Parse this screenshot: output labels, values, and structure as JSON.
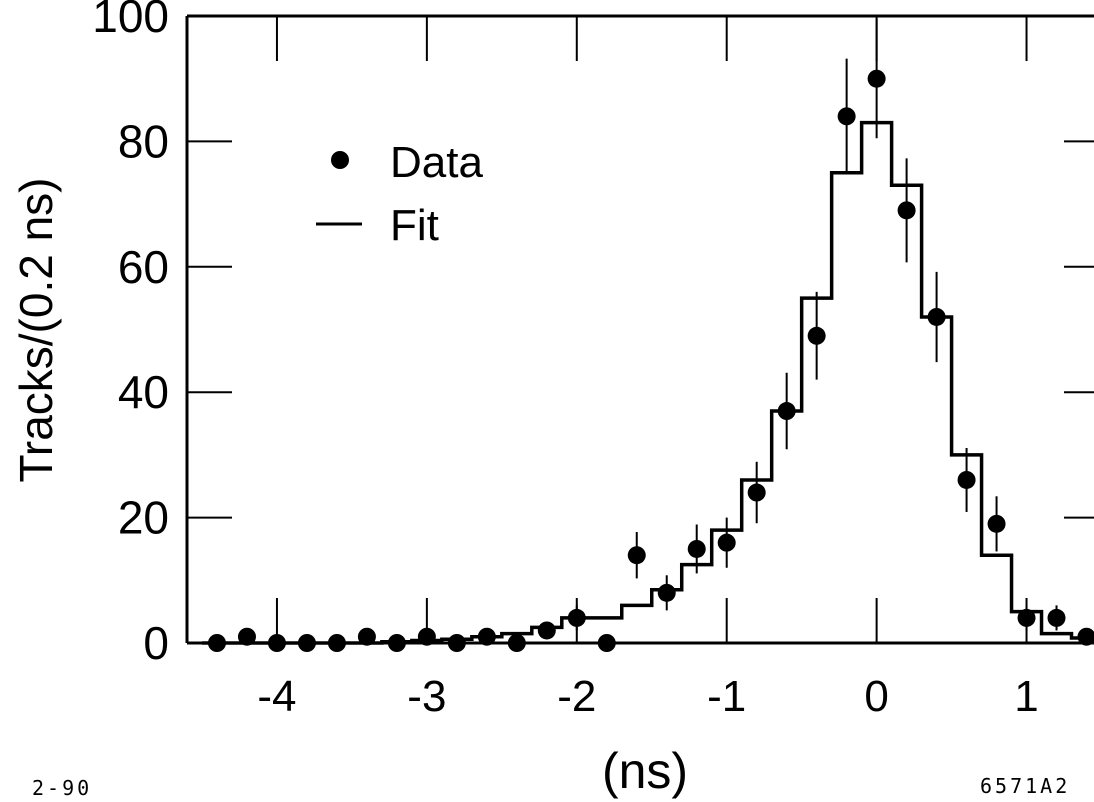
{
  "chart_data": {
    "type": "scatter",
    "title": "",
    "xlabel": "(ns)",
    "ylabel": "Tracks/(0.2 ns)",
    "xlim": [
      -4.6,
      1.45
    ],
    "ylim": [
      0,
      100
    ],
    "x_ticks": [
      -4,
      -3,
      -2,
      -1,
      0,
      1
    ],
    "x_tick_labels": [
      "-4",
      "-3",
      "-2",
      "-1",
      "0",
      "1"
    ],
    "y_ticks": [
      0,
      20,
      40,
      60,
      80,
      100
    ],
    "y_tick_labels": [
      "0",
      "20",
      "40",
      "60",
      "80",
      "100"
    ],
    "grid": false,
    "legend_position": "upper-left",
    "series": [
      {
        "name": "Data",
        "style": "points-with-error-bars",
        "x": [
          -4.4,
          -4.2,
          -4.0,
          -3.8,
          -3.6,
          -3.4,
          -3.2,
          -3.0,
          -2.8,
          -2.6,
          -2.4,
          -2.2,
          -2.0,
          -1.8,
          -1.6,
          -1.4,
          -1.2,
          -1.0,
          -0.8,
          -0.6,
          -0.4,
          -0.2,
          0.0,
          0.2,
          0.4,
          0.6,
          0.8,
          1.0,
          1.2,
          1.4
        ],
        "y": [
          0,
          1,
          0,
          0,
          0,
          1,
          0,
          1,
          0,
          1,
          0,
          2,
          4,
          0,
          14,
          8,
          15,
          16,
          24,
          37,
          49,
          84,
          90,
          69,
          52,
          26,
          19,
          4,
          4,
          1
        ],
        "yerr": [
          0,
          1,
          0,
          0,
          0,
          1,
          0,
          1,
          0,
          1,
          0,
          1.4,
          2,
          0,
          3.7,
          2.8,
          3.9,
          4,
          4.9,
          6.1,
          7,
          9.2,
          9.5,
          8.3,
          7.2,
          5.1,
          4.4,
          2,
          2,
          1
        ]
      },
      {
        "name": "Fit",
        "style": "histogram-step",
        "bin_edges": [
          -4.5,
          -4.3,
          -4.1,
          -3.9,
          -3.7,
          -3.5,
          -3.3,
          -3.1,
          -2.9,
          -2.7,
          -2.5,
          -2.3,
          -2.1,
          -1.9,
          -1.7,
          -1.5,
          -1.3,
          -1.1,
          -0.9,
          -0.7,
          -0.5,
          -0.3,
          -0.1,
          0.1,
          0.3,
          0.5,
          0.7,
          0.9,
          1.1,
          1.3,
          1.45
        ],
        "values": [
          0,
          0,
          0,
          0,
          0,
          0,
          0.2,
          0.4,
          0.6,
          1,
          1.5,
          2.5,
          4,
          4,
          6,
          8.5,
          12.5,
          18,
          26,
          37,
          55,
          75,
          83,
          73,
          52,
          30,
          14,
          5,
          1.5,
          0.8
        ]
      }
    ],
    "color_data": "#000000"
  },
  "notes": {
    "left": "2-90",
    "right": "6571A2"
  }
}
